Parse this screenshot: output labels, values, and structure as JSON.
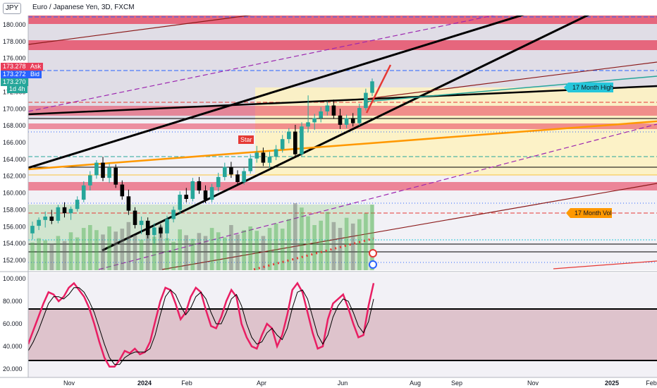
{
  "toolbar": {
    "symbol_button": "JPY"
  },
  "legend": {
    "title": "Euro / Japanese Yen, 3D, FXCM"
  },
  "price_tags": {
    "ask": {
      "value": "173.278",
      "name": "Ask"
    },
    "bid": {
      "value": "173.272",
      "name": "Bid"
    },
    "last": {
      "value": "173.270",
      "countdown": "1d 4h"
    }
  },
  "annotations": {
    "high_label": "17 Month High",
    "vol_label": "17 Month Vol",
    "star_label": "Star"
  },
  "colors": {
    "bull": "#26a69a",
    "bear": "#000000",
    "stoch_k": "#e91e63",
    "stoch_d": "#000000",
    "red_zone": "#e83e5a",
    "sma_orange": "#ff9800",
    "bb_green": "#4caf50",
    "signal_blue": "#2962ff",
    "label_teal": "#26c6da",
    "label_orange": "#ff9800"
  },
  "chart_data": [
    {
      "type": "candlestick",
      "title": "Euro / Japanese Yen, 3D, FXCM",
      "x_ticks": [
        "Nov",
        "2024",
        "Feb",
        "Apr",
        "Jun",
        "Aug",
        "Sep",
        "Nov",
        "2025",
        "Feb"
      ],
      "y_ticks": [
        "180.000",
        "178.000",
        "176.000",
        "174.000",
        "172.000",
        "170.000",
        "168.000",
        "166.000",
        "164.000",
        "162.000",
        "160.000",
        "158.000",
        "156.000",
        "154.000",
        "152.000"
      ],
      "ylim": [
        151,
        183
      ],
      "candles": [
        {
          "o": 155.2,
          "h": 156.6,
          "l": 154.5,
          "c": 156.1
        },
        {
          "o": 156.1,
          "h": 157.1,
          "l": 155.6,
          "c": 156.8
        },
        {
          "o": 156.8,
          "h": 157.8,
          "l": 155.9,
          "c": 157.2
        },
        {
          "o": 157.2,
          "h": 158.0,
          "l": 156.3,
          "c": 156.7
        },
        {
          "o": 156.7,
          "h": 158.6,
          "l": 156.4,
          "c": 158.3
        },
        {
          "o": 158.3,
          "h": 158.9,
          "l": 157.1,
          "c": 157.6
        },
        {
          "o": 157.6,
          "h": 158.4,
          "l": 156.8,
          "c": 158.1
        },
        {
          "o": 158.1,
          "h": 159.6,
          "l": 157.8,
          "c": 159.2
        },
        {
          "o": 159.2,
          "h": 161.4,
          "l": 158.9,
          "c": 160.9
        },
        {
          "o": 160.9,
          "h": 162.6,
          "l": 160.3,
          "c": 162.1
        },
        {
          "o": 162.1,
          "h": 163.9,
          "l": 161.7,
          "c": 163.6
        },
        {
          "o": 163.6,
          "h": 164.3,
          "l": 161.4,
          "c": 161.8
        },
        {
          "o": 161.8,
          "h": 163.5,
          "l": 161.2,
          "c": 163.0
        },
        {
          "o": 163.0,
          "h": 163.4,
          "l": 160.6,
          "c": 161.0
        },
        {
          "o": 161.0,
          "h": 161.5,
          "l": 159.2,
          "c": 159.6
        },
        {
          "o": 159.6,
          "h": 160.4,
          "l": 157.4,
          "c": 157.9
        },
        {
          "o": 157.9,
          "h": 158.3,
          "l": 155.8,
          "c": 156.2
        },
        {
          "o": 156.2,
          "h": 157.2,
          "l": 155.1,
          "c": 156.7
        },
        {
          "o": 156.7,
          "h": 157.1,
          "l": 154.6,
          "c": 155.0
        },
        {
          "o": 155.0,
          "h": 156.4,
          "l": 154.0,
          "c": 155.9
        },
        {
          "o": 155.9,
          "h": 156.3,
          "l": 154.7,
          "c": 155.2
        },
        {
          "o": 155.2,
          "h": 157.3,
          "l": 154.4,
          "c": 156.9
        },
        {
          "o": 156.9,
          "h": 158.4,
          "l": 156.5,
          "c": 158.0
        },
        {
          "o": 158.0,
          "h": 160.2,
          "l": 157.6,
          "c": 159.8
        },
        {
          "o": 159.8,
          "h": 160.6,
          "l": 158.9,
          "c": 159.3
        },
        {
          "o": 159.3,
          "h": 161.8,
          "l": 159.0,
          "c": 161.4
        },
        {
          "o": 161.4,
          "h": 161.9,
          "l": 159.9,
          "c": 160.3
        },
        {
          "o": 160.3,
          "h": 160.9,
          "l": 158.8,
          "c": 159.2
        },
        {
          "o": 159.2,
          "h": 161.1,
          "l": 158.9,
          "c": 160.7
        },
        {
          "o": 160.7,
          "h": 162.4,
          "l": 160.2,
          "c": 161.9
        },
        {
          "o": 161.9,
          "h": 163.6,
          "l": 161.5,
          "c": 163.1
        },
        {
          "o": 163.1,
          "h": 163.7,
          "l": 161.8,
          "c": 162.2
        },
        {
          "o": 162.2,
          "h": 162.7,
          "l": 160.9,
          "c": 161.3
        },
        {
          "o": 161.3,
          "h": 163.0,
          "l": 161.0,
          "c": 162.6
        },
        {
          "o": 162.6,
          "h": 164.6,
          "l": 162.3,
          "c": 164.1
        },
        {
          "o": 164.1,
          "h": 165.6,
          "l": 163.6,
          "c": 164.8
        },
        {
          "o": 164.8,
          "h": 165.4,
          "l": 163.2,
          "c": 163.6
        },
        {
          "o": 163.6,
          "h": 164.9,
          "l": 163.0,
          "c": 164.3
        },
        {
          "o": 164.3,
          "h": 165.7,
          "l": 163.9,
          "c": 165.2
        },
        {
          "o": 165.2,
          "h": 166.9,
          "l": 164.8,
          "c": 166.4
        },
        {
          "o": 166.4,
          "h": 167.7,
          "l": 165.9,
          "c": 167.3
        },
        {
          "o": 167.3,
          "h": 168.1,
          "l": 164.2,
          "c": 164.6
        },
        {
          "o": 164.6,
          "h": 168.4,
          "l": 164.3,
          "c": 167.9
        },
        {
          "o": 167.9,
          "h": 171.6,
          "l": 167.2,
          "c": 168.4
        },
        {
          "o": 168.4,
          "h": 169.4,
          "l": 167.5,
          "c": 168.9
        },
        {
          "o": 168.9,
          "h": 170.2,
          "l": 168.4,
          "c": 169.7
        },
        {
          "o": 169.7,
          "h": 170.9,
          "l": 169.2,
          "c": 170.4
        },
        {
          "o": 170.4,
          "h": 171.1,
          "l": 168.8,
          "c": 169.2
        },
        {
          "o": 169.2,
          "h": 170.0,
          "l": 167.6,
          "c": 168.1
        },
        {
          "o": 168.1,
          "h": 169.3,
          "l": 167.7,
          "c": 168.9
        },
        {
          "o": 168.9,
          "h": 169.5,
          "l": 167.9,
          "c": 168.3
        },
        {
          "o": 168.3,
          "h": 170.6,
          "l": 168.0,
          "c": 170.1
        },
        {
          "o": 170.1,
          "h": 172.4,
          "l": 169.8,
          "c": 171.9
        },
        {
          "o": 171.9,
          "h": 173.6,
          "l": 171.5,
          "c": 173.27
        }
      ],
      "volume": [
        38,
        44,
        41,
        36,
        47,
        40,
        52,
        45,
        58,
        62,
        55,
        49,
        60,
        53,
        57,
        66,
        48,
        42,
        50,
        46,
        61,
        44,
        39,
        56,
        48,
        43,
        51,
        47,
        58,
        52,
        45,
        62,
        49,
        55,
        60,
        54,
        47,
        58,
        64,
        57,
        70,
        92,
        86,
        74,
        62,
        68,
        80,
        66,
        58,
        72,
        64,
        70,
        78,
        90
      ]
    },
    {
      "type": "line",
      "name": "stochastic",
      "y_ticks": [
        "100.000",
        "80.000",
        "60.000",
        "40.000",
        "20.000"
      ],
      "ylim": [
        15,
        103
      ],
      "levels": [
        72,
        27
      ],
      "series": [
        {
          "values": [
            42,
            54,
            66,
            78,
            88,
            86,
            80,
            84,
            92,
            96,
            90,
            84,
            74,
            60,
            44,
            30,
            22,
            22,
            28,
            36,
            34,
            38,
            33,
            35,
            44,
            62,
            80,
            92,
            90,
            78,
            64,
            70,
            84,
            92,
            88,
            72,
            58,
            56,
            66,
            80,
            90,
            84,
            60,
            48,
            40,
            38,
            50,
            60,
            56,
            40,
            50,
            68,
            90,
            96,
            88,
            70,
            52,
            38,
            40,
            64,
            78,
            82,
            86,
            74,
            60,
            48,
            50,
            76,
            96
          ]
        },
        {
          "values": [
            36,
            44,
            54,
            66,
            78,
            84,
            84,
            82,
            86,
            92,
            92,
            88,
            80,
            70,
            56,
            42,
            30,
            24,
            24,
            30,
            33,
            35,
            35,
            35,
            38,
            50,
            68,
            84,
            90,
            86,
            76,
            68,
            74,
            84,
            88,
            82,
            70,
            60,
            60,
            70,
            82,
            86,
            76,
            60,
            48,
            42,
            44,
            52,
            56,
            50,
            46,
            56,
            74,
            88,
            90,
            82,
            66,
            50,
            42,
            50,
            66,
            76,
            82,
            80,
            70,
            58,
            52,
            62,
            82
          ]
        }
      ]
    }
  ]
}
